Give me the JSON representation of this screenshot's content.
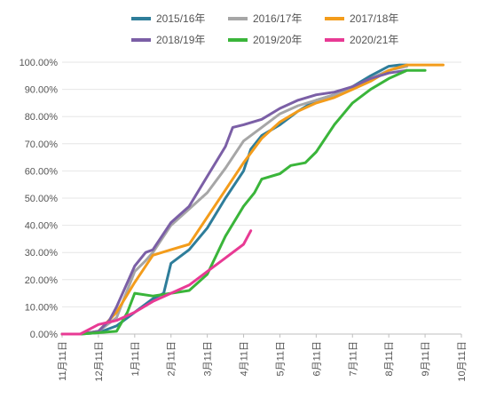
{
  "chart_data": {
    "type": "line",
    "title": "",
    "xlabel": "",
    "ylabel": "",
    "ylim": [
      0,
      100
    ],
    "y_ticks": [
      "0.00%",
      "10.00%",
      "20.00%",
      "30.00%",
      "40.00%",
      "50.00%",
      "60.00%",
      "70.00%",
      "80.00%",
      "90.00%",
      "100.00%"
    ],
    "x_ticks": [
      "11月11日",
      "12月11日",
      "1月11日",
      "2月11日",
      "3月11日",
      "4月11日",
      "5月11日",
      "6月11日",
      "7月11日",
      "8月11日",
      "9月11日",
      "10月11日"
    ],
    "grid": "horizontal",
    "legend_position": "top",
    "series": [
      {
        "name": "2015/16年",
        "color": "#2e7d9a",
        "points": [
          [
            0,
            0
          ],
          [
            0.5,
            0
          ],
          [
            1,
            0.5
          ],
          [
            1.5,
            3
          ],
          [
            2,
            8
          ],
          [
            2.5,
            13
          ],
          [
            2.8,
            15
          ],
          [
            3,
            26
          ],
          [
            3.5,
            31
          ],
          [
            4,
            39
          ],
          [
            4.5,
            50
          ],
          [
            5,
            60
          ],
          [
            5.2,
            68
          ],
          [
            5.5,
            73
          ],
          [
            6,
            77
          ],
          [
            6.5,
            82
          ],
          [
            7,
            86
          ],
          [
            7.5,
            88
          ],
          [
            8,
            91
          ],
          [
            8.5,
            95
          ],
          [
            9,
            98.5
          ],
          [
            9.3,
            99
          ],
          [
            9.5,
            99
          ]
        ]
      },
      {
        "name": "2016/17年",
        "color": "#a6a6a6",
        "points": [
          [
            0,
            0
          ],
          [
            0.5,
            0
          ],
          [
            1,
            1
          ],
          [
            1.5,
            6
          ],
          [
            2,
            23
          ],
          [
            2.3,
            27
          ],
          [
            2.5,
            30
          ],
          [
            3,
            40
          ],
          [
            3.5,
            46
          ],
          [
            4,
            52
          ],
          [
            4.5,
            61
          ],
          [
            5,
            71
          ],
          [
            5.5,
            76
          ],
          [
            6,
            81
          ],
          [
            6.5,
            84
          ],
          [
            7,
            86
          ],
          [
            7.5,
            88
          ],
          [
            8,
            90
          ],
          [
            8.5,
            94
          ],
          [
            9,
            97
          ],
          [
            9.5,
            98.5
          ]
        ]
      },
      {
        "name": "2017/18年",
        "color": "#f39c1b",
        "points": [
          [
            0,
            0
          ],
          [
            0.5,
            0
          ],
          [
            1,
            1
          ],
          [
            1.5,
            8
          ],
          [
            2,
            19
          ],
          [
            2.5,
            29
          ],
          [
            3,
            31
          ],
          [
            3.5,
            33
          ],
          [
            4,
            43
          ],
          [
            4.5,
            53
          ],
          [
            5,
            63
          ],
          [
            5.5,
            72
          ],
          [
            6,
            78
          ],
          [
            6.5,
            82
          ],
          [
            7,
            85
          ],
          [
            7.5,
            87
          ],
          [
            8,
            90
          ],
          [
            8.5,
            93
          ],
          [
            9,
            97
          ],
          [
            9.5,
            99
          ],
          [
            10,
            99
          ],
          [
            10.5,
            99
          ]
        ]
      },
      {
        "name": "2018/19年",
        "color": "#7b5fa6",
        "points": [
          [
            0,
            0
          ],
          [
            0.5,
            0
          ],
          [
            1,
            1
          ],
          [
            1.3,
            5
          ],
          [
            1.5,
            10
          ],
          [
            2,
            25
          ],
          [
            2.3,
            30
          ],
          [
            2.5,
            31
          ],
          [
            3,
            41
          ],
          [
            3.5,
            47
          ],
          [
            4,
            58
          ],
          [
            4.5,
            69
          ],
          [
            4.7,
            76
          ],
          [
            5,
            77
          ],
          [
            5.5,
            79
          ],
          [
            6,
            83
          ],
          [
            6.5,
            86
          ],
          [
            7,
            88
          ],
          [
            7.5,
            89
          ],
          [
            8,
            91
          ],
          [
            8.5,
            94
          ],
          [
            9,
            96
          ],
          [
            9.5,
            97
          ]
        ]
      },
      {
        "name": "2019/20年",
        "color": "#3ab53a",
        "points": [
          [
            0,
            0
          ],
          [
            0.5,
            0
          ],
          [
            1,
            0.5
          ],
          [
            1.5,
            1
          ],
          [
            1.8,
            8
          ],
          [
            2,
            15
          ],
          [
            2.5,
            14
          ],
          [
            3,
            15
          ],
          [
            3.5,
            16
          ],
          [
            4,
            22
          ],
          [
            4.5,
            36
          ],
          [
            5,
            47
          ],
          [
            5.3,
            52
          ],
          [
            5.5,
            57
          ],
          [
            6,
            59
          ],
          [
            6.3,
            62
          ],
          [
            6.7,
            63
          ],
          [
            7,
            67
          ],
          [
            7.5,
            77
          ],
          [
            8,
            85
          ],
          [
            8.5,
            90
          ],
          [
            9,
            94
          ],
          [
            9.5,
            97
          ],
          [
            10,
            97
          ]
        ]
      },
      {
        "name": "2020/21年",
        "color": "#e83a94",
        "points": [
          [
            0,
            0
          ],
          [
            0.5,
            0
          ],
          [
            1,
            3.5
          ],
          [
            1.5,
            5
          ],
          [
            2,
            8
          ],
          [
            2.5,
            12
          ],
          [
            3,
            15
          ],
          [
            3.5,
            18
          ],
          [
            4,
            23
          ],
          [
            4.5,
            28
          ],
          [
            5,
            33
          ],
          [
            5.2,
            38
          ]
        ]
      }
    ]
  }
}
